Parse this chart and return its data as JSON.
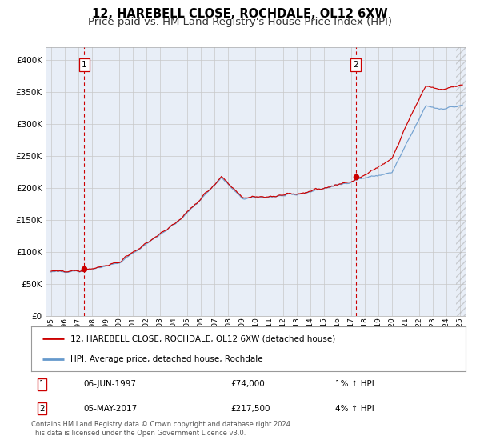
{
  "title": "12, HAREBELL CLOSE, ROCHDALE, OL12 6XW",
  "subtitle": "Price paid vs. HM Land Registry's House Price Index (HPI)",
  "fig_bg_color": "#ffffff",
  "plot_bg_color": "#e8eef7",
  "red_line_label": "12, HAREBELL CLOSE, ROCHDALE, OL12 6XW (detached house)",
  "blue_line_label": "HPI: Average price, detached house, Rochdale",
  "purchase1_date_num": 1997.44,
  "purchase1_price": 74000,
  "purchase1_label": "06-JUN-1997",
  "purchase1_pct": "1%",
  "purchase2_date_num": 2017.34,
  "purchase2_price": 217500,
  "purchase2_label": "05-MAY-2017",
  "purchase2_pct": "4%",
  "ylim": [
    0,
    420000
  ],
  "yticks": [
    0,
    50000,
    100000,
    150000,
    200000,
    250000,
    300000,
    350000,
    400000
  ],
  "xlim_left": 1994.6,
  "xlim_right": 2025.4,
  "footer": "Contains HM Land Registry data © Crown copyright and database right 2024.\nThis data is licensed under the Open Government Licence v3.0.",
  "title_fontsize": 10.5,
  "subtitle_fontsize": 9.5,
  "red_color": "#cc0000",
  "blue_color": "#6699cc"
}
